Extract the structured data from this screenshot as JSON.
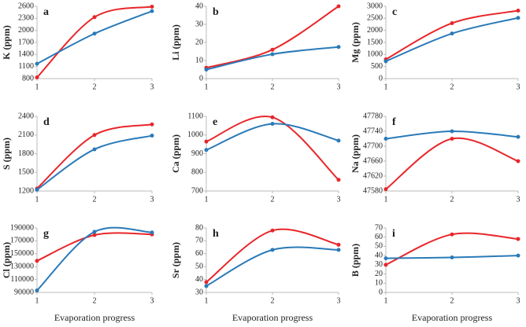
{
  "chart_data": [
    {
      "type": "line",
      "label": "a",
      "ylabel": "K (ppm)",
      "x": [
        1,
        2,
        3
      ],
      "xlim": [
        1,
        3
      ],
      "xticks": [
        1,
        2,
        3
      ],
      "ylim": [
        800,
        2600
      ],
      "yticks": [
        800,
        1100,
        1400,
        1700,
        2000,
        2300,
        2600
      ],
      "series": [
        {
          "color": "#e8262a",
          "values": [
            830,
            2330,
            2590
          ]
        },
        {
          "color": "#2a7ab8",
          "values": [
            1170,
            1920,
            2480
          ]
        }
      ]
    },
    {
      "type": "line",
      "label": "b",
      "ylabel": "Li (ppm)",
      "x": [
        1,
        2,
        3
      ],
      "xlim": [
        1,
        3
      ],
      "xticks": [
        1,
        2,
        3
      ],
      "ylim": [
        0,
        40
      ],
      "yticks": [
        0,
        10,
        20,
        30,
        40
      ],
      "series": [
        {
          "color": "#e8262a",
          "values": [
            6,
            16,
            40
          ]
        },
        {
          "color": "#2a7ab8",
          "values": [
            5,
            13.5,
            17.5
          ]
        }
      ]
    },
    {
      "type": "line",
      "label": "c",
      "ylabel": "Mg (ppm)",
      "x": [
        1,
        2,
        3
      ],
      "xlim": [
        1,
        3
      ],
      "xticks": [
        1,
        2,
        3
      ],
      "ylim": [
        0,
        3000
      ],
      "yticks": [
        0,
        500,
        1000,
        1500,
        2000,
        2500,
        3000
      ],
      "series": [
        {
          "color": "#e8262a",
          "values": [
            800,
            2300,
            2820
          ]
        },
        {
          "color": "#2a7ab8",
          "values": [
            720,
            1870,
            2520
          ]
        }
      ]
    },
    {
      "type": "line",
      "label": "d",
      "ylabel": "S (ppm)",
      "x": [
        1,
        2,
        3
      ],
      "xlim": [
        1,
        3
      ],
      "xticks": [
        1,
        2,
        3
      ],
      "ylim": [
        1200,
        2400
      ],
      "yticks": [
        1200,
        1500,
        1800,
        2100,
        2400
      ],
      "series": [
        {
          "color": "#e8262a",
          "values": [
            1240,
            2100,
            2270
          ]
        },
        {
          "color": "#2a7ab8",
          "values": [
            1220,
            1870,
            2090
          ]
        }
      ]
    },
    {
      "type": "line",
      "label": "e",
      "ylabel": "Ca (ppm)",
      "x": [
        1,
        2,
        3
      ],
      "xlim": [
        1,
        3
      ],
      "xticks": [
        1,
        2,
        3
      ],
      "ylim": [
        700,
        1100
      ],
      "yticks": [
        700,
        800,
        900,
        1000,
        1100
      ],
      "series": [
        {
          "color": "#e8262a",
          "values": [
            965,
            1095,
            760
          ]
        },
        {
          "color": "#2a7ab8",
          "values": [
            920,
            1060,
            970
          ]
        }
      ]
    },
    {
      "type": "line",
      "label": "f",
      "ylabel": "Na (ppm)",
      "x": [
        1,
        2,
        3
      ],
      "xlim": [
        1,
        3
      ],
      "xticks": [
        1,
        2,
        3
      ],
      "ylim": [
        47580,
        47780
      ],
      "yticks": [
        47580,
        47620,
        47660,
        47700,
        47740,
        47780
      ],
      "series": [
        {
          "color": "#e8262a",
          "values": [
            47585,
            47720,
            47660
          ]
        },
        {
          "color": "#2a7ab8",
          "values": [
            47720,
            47740,
            47725
          ]
        }
      ]
    },
    {
      "type": "line",
      "label": "g",
      "ylabel": "Cl (ppm)",
      "xlabel": "Evaporation progress",
      "x": [
        1,
        2,
        3
      ],
      "xlim": [
        1,
        3
      ],
      "xticks": [
        1,
        2,
        3
      ],
      "ylim": [
        90000,
        190000
      ],
      "yticks": [
        90000,
        110000,
        130000,
        150000,
        170000,
        190000
      ],
      "series": [
        {
          "color": "#e8262a",
          "values": [
            139000,
            179000,
            180000
          ]
        },
        {
          "color": "#2a7ab8",
          "values": [
            93000,
            184000,
            183000
          ]
        }
      ]
    },
    {
      "type": "line",
      "label": "h",
      "ylabel": "Sr (ppm)",
      "xlabel": "Evaporation progress",
      "x": [
        1,
        2,
        3
      ],
      "xlim": [
        1,
        3
      ],
      "xticks": [
        1,
        2,
        3
      ],
      "ylim": [
        30,
        80
      ],
      "yticks": [
        30,
        40,
        50,
        60,
        70,
        80
      ],
      "series": [
        {
          "color": "#e8262a",
          "values": [
            38,
            78,
            67
          ]
        },
        {
          "color": "#2a7ab8",
          "values": [
            35,
            63,
            63
          ]
        }
      ]
    },
    {
      "type": "line",
      "label": "i",
      "ylabel": "B (ppm)",
      "xlabel": "Evaporation progress",
      "x": [
        1,
        2,
        3
      ],
      "xlim": [
        1,
        3
      ],
      "xticks": [
        1,
        2,
        3
      ],
      "ylim": [
        0,
        70
      ],
      "yticks": [
        0,
        10,
        20,
        30,
        40,
        50,
        60,
        70
      ],
      "series": [
        {
          "color": "#e8262a",
          "values": [
            30,
            63,
            58
          ]
        },
        {
          "color": "#2a7ab8",
          "values": [
            37,
            38,
            40
          ]
        }
      ]
    }
  ]
}
